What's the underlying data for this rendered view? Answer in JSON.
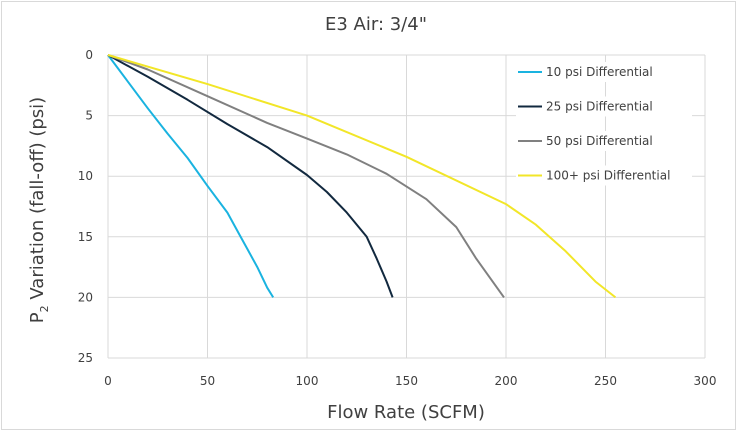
{
  "chart_data": {
    "type": "line",
    "title": "E3 Air: 3/4\"",
    "xlabel": "Flow Rate (SCFM)",
    "ylabel_main": "P",
    "ylabel_sub": "2",
    "ylabel_rest": " Variation (fall-off) (psi)",
    "xlim": [
      0,
      300
    ],
    "ylim": [
      0,
      25
    ],
    "y_inverted": true,
    "x_ticks": [
      0,
      50,
      100,
      150,
      200,
      250,
      300
    ],
    "y_ticks": [
      0,
      5,
      10,
      15,
      20,
      25
    ],
    "grid": true,
    "legend_position": "top-right",
    "series": [
      {
        "name": "10 psi Differential",
        "color": "#1ab3e0",
        "points": [
          [
            0,
            0
          ],
          [
            10,
            2.2
          ],
          [
            20,
            4.4
          ],
          [
            30,
            6.5
          ],
          [
            40,
            8.5
          ],
          [
            50,
            10.8
          ],
          [
            60,
            13
          ],
          [
            66,
            14.8
          ],
          [
            70,
            16
          ],
          [
            75,
            17.5
          ],
          [
            80,
            19.2
          ],
          [
            83,
            20
          ]
        ]
      },
      {
        "name": "25 psi Differential",
        "color": "#12293f",
        "points": [
          [
            0,
            0
          ],
          [
            20,
            1.8
          ],
          [
            40,
            3.7
          ],
          [
            60,
            5.7
          ],
          [
            80,
            7.6
          ],
          [
            100,
            9.9
          ],
          [
            110,
            11.3
          ],
          [
            120,
            13
          ],
          [
            130,
            15
          ],
          [
            135,
            16.8
          ],
          [
            140,
            18.7
          ],
          [
            143,
            20
          ]
        ]
      },
      {
        "name": "50 psi Differential",
        "color": "#808080",
        "points": [
          [
            0,
            0
          ],
          [
            20,
            1.2
          ],
          [
            50,
            3.4
          ],
          [
            80,
            5.6
          ],
          [
            100,
            6.9
          ],
          [
            120,
            8.2
          ],
          [
            140,
            9.8
          ],
          [
            160,
            11.9
          ],
          [
            175,
            14.2
          ],
          [
            185,
            16.8
          ],
          [
            199,
            20
          ]
        ]
      },
      {
        "name": "100+ psi Differential",
        "color": "#f2e628",
        "points": [
          [
            0,
            0
          ],
          [
            50,
            2.4
          ],
          [
            100,
            5
          ],
          [
            150,
            8.4
          ],
          [
            200,
            12.3
          ],
          [
            215,
            14
          ],
          [
            230,
            16.2
          ],
          [
            245,
            18.7
          ],
          [
            255,
            20
          ]
        ]
      }
    ]
  }
}
